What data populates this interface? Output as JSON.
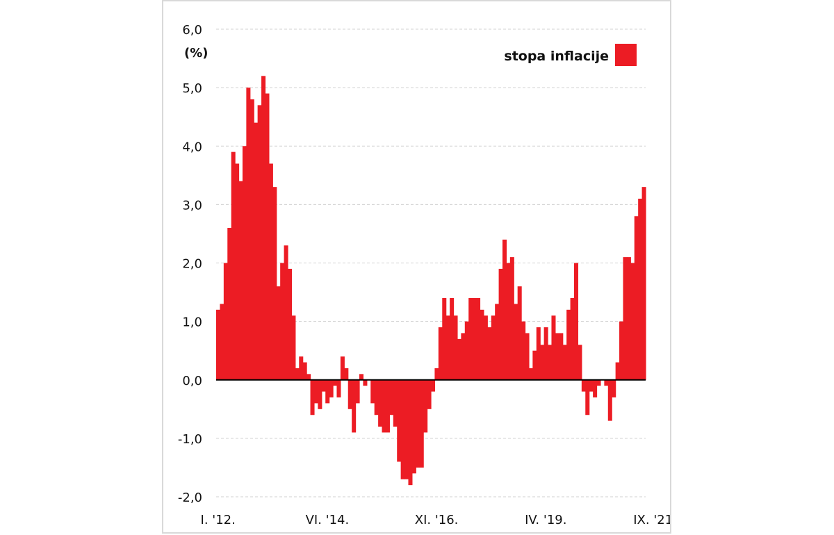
{
  "chart_data": {
    "type": "bar",
    "unit_label": "(%)",
    "legend": {
      "label": "stopa inflacije",
      "color": "#ec1c24"
    },
    "ylim": [
      -2.0,
      6.0
    ],
    "y_ticks": [
      {
        "value": -2.0,
        "label": "-2,0"
      },
      {
        "value": -1.0,
        "label": "-1,0"
      },
      {
        "value": 0.0,
        "label": "0,0"
      },
      {
        "value": 1.0,
        "label": "1,0"
      },
      {
        "value": 2.0,
        "label": "2,0"
      },
      {
        "value": 3.0,
        "label": "3,0"
      },
      {
        "value": 4.0,
        "label": "4,0"
      },
      {
        "value": 5.0,
        "label": "5,0"
      },
      {
        "value": 6.0,
        "label": "6,0"
      }
    ],
    "x_ticks": [
      {
        "index": 0,
        "label": "I. '12."
      },
      {
        "index": 29,
        "label": "VI. '14."
      },
      {
        "index": 58,
        "label": "XI. '16."
      },
      {
        "index": 87,
        "label": "IV. '19."
      },
      {
        "index": 116,
        "label": "IX. '21."
      }
    ],
    "grid": true,
    "series": [
      {
        "name": "stopa inflacije",
        "color": "#ec1c24",
        "values": [
          1.2,
          1.3,
          2.0,
          2.6,
          3.9,
          3.7,
          3.4,
          4.0,
          5.0,
          4.8,
          4.4,
          4.7,
          5.2,
          4.9,
          3.7,
          3.3,
          1.6,
          2.0,
          2.3,
          1.9,
          1.1,
          0.2,
          0.4,
          0.3,
          0.1,
          -0.6,
          -0.4,
          -0.5,
          -0.2,
          -0.4,
          -0.3,
          -0.1,
          -0.3,
          0.4,
          0.2,
          -0.5,
          -0.9,
          -0.4,
          0.1,
          -0.1,
          0.0,
          -0.4,
          -0.6,
          -0.8,
          -0.9,
          -0.9,
          -0.6,
          -0.8,
          -1.4,
          -1.7,
          -1.7,
          -1.8,
          -1.6,
          -1.5,
          -1.5,
          -0.9,
          -0.5,
          -0.2,
          0.2,
          0.9,
          1.4,
          1.1,
          1.4,
          1.1,
          0.7,
          0.8,
          1.0,
          1.4,
          1.4,
          1.4,
          1.2,
          1.1,
          0.9,
          1.1,
          1.3,
          1.9,
          2.4,
          2.0,
          2.1,
          1.3,
          1.6,
          1.0,
          0.8,
          0.2,
          0.5,
          0.9,
          0.6,
          0.9,
          0.6,
          1.1,
          0.8,
          0.8,
          0.6,
          1.2,
          1.4,
          2.0,
          0.6,
          -0.2,
          -0.6,
          -0.2,
          -0.3,
          -0.1,
          0.0,
          -0.1,
          -0.7,
          -0.3,
          0.3,
          1.0,
          2.1,
          2.1,
          2.0,
          2.8,
          3.1,
          3.3
        ]
      }
    ]
  }
}
